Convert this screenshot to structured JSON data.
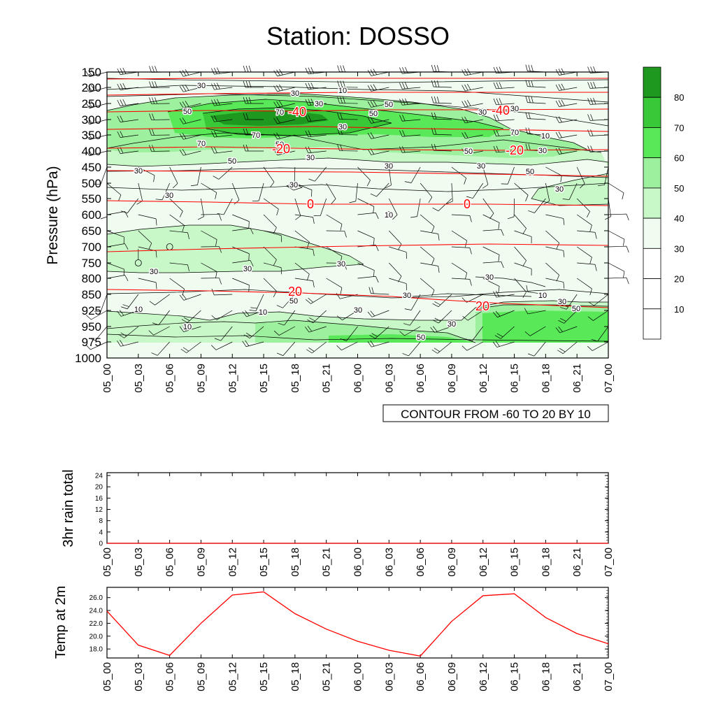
{
  "title": "Station: DOSSO",
  "colors": {
    "fill_levels": [
      "#ffffff",
      "#ffffff",
      "#ffffff",
      "#f0fcf0",
      "#c8f8c8",
      "#9df09d",
      "#58e858",
      "#38c838",
      "#1e981e"
    ],
    "temperature_contour": "#ff0000",
    "rh_contour": "#000000",
    "wind_barb": "#000000"
  },
  "time_labels": [
    "05_00",
    "05_03",
    "05_06",
    "05_09",
    "05_12",
    "05_15",
    "05_18",
    "05_21",
    "06_00",
    "06_03",
    "06_06",
    "06_09",
    "06_12",
    "06_15",
    "06_18",
    "06_21",
    "07_00"
  ],
  "chart_data": [
    {
      "type": "heatmap",
      "name": "time-pressure cross section",
      "title": "Station: DOSSO",
      "ylabel": "Pressure (hPa)",
      "xlabel": "",
      "y_ticks": [
        150,
        200,
        250,
        300,
        350,
        400,
        450,
        500,
        550,
        600,
        650,
        700,
        750,
        800,
        850,
        925,
        950,
        975,
        1000
      ],
      "y_tick_labels": [
        "150",
        "200",
        "250",
        "300",
        "350",
        "400",
        "450",
        "500",
        "550",
        "600",
        "650",
        "700",
        "750",
        "800",
        "850",
        "925",
        "950",
        "975",
        "1000"
      ],
      "ylim": [
        150,
        1000
      ],
      "x_categories": [
        "05_00",
        "05_03",
        "05_06",
        "05_09",
        "05_12",
        "05_15",
        "05_18",
        "05_21",
        "06_00",
        "06_03",
        "06_06",
        "06_09",
        "06_12",
        "06_15",
        "06_18",
        "06_21",
        "07_00"
      ],
      "filled_contour_levels": [
        10,
        20,
        30,
        40,
        50,
        60,
        70,
        80
      ],
      "colorbar_labels": [
        "80",
        "70",
        "60",
        "50",
        "40",
        "30",
        "20",
        "10"
      ],
      "temperature_isotherm_labels": [
        "-40",
        "-40",
        "-20",
        "-20",
        "0",
        "0",
        "20",
        "20"
      ],
      "contour_info": "CONTOUR FROM -60 TO 20 BY 10",
      "rh_contour_labels": [
        "30",
        "30",
        "10",
        "50",
        "30",
        "70",
        "50",
        "70",
        "30",
        "50",
        "70",
        "50",
        "50",
        "70",
        "30",
        "10",
        "50",
        "30",
        "30",
        "30",
        "30",
        "50",
        "30",
        "30",
        "30",
        "10",
        "0",
        "0",
        "30",
        "30",
        "30",
        "30",
        "30",
        "10",
        "10",
        "30",
        "50",
        "30",
        "10",
        "30",
        "10",
        "30",
        "50",
        "30",
        "50"
      ]
    },
    {
      "type": "line",
      "name": "3hr rain total",
      "ylabel": "3hr rain total",
      "x": [
        "05_00",
        "05_03",
        "05_06",
        "05_09",
        "05_12",
        "05_15",
        "05_18",
        "05_21",
        "06_00",
        "06_03",
        "06_06",
        "06_09",
        "06_12",
        "06_15",
        "06_18",
        "06_21",
        "07_00"
      ],
      "y_ticks": [
        0,
        4,
        8,
        12,
        16,
        20,
        24
      ],
      "y_tick_labels": [
        "0",
        "4",
        "8",
        "12",
        "16",
        "20",
        "24"
      ],
      "ylim": [
        0,
        25
      ],
      "series": [
        {
          "values": [
            0,
            0,
            0,
            0,
            0,
            0,
            0,
            0,
            0,
            0,
            0,
            0,
            0,
            0,
            0,
            0,
            0
          ],
          "color": "#ff0000"
        }
      ]
    },
    {
      "type": "line",
      "name": "Temp at 2m",
      "ylabel": "Temp at 2m",
      "x": [
        "05_00",
        "05_03",
        "05_06",
        "05_09",
        "05_12",
        "05_15",
        "05_18",
        "05_21",
        "06_00",
        "06_03",
        "06_06",
        "06_09",
        "06_12",
        "06_15",
        "06_18",
        "06_21",
        "07_00"
      ],
      "y_ticks": [
        18.0,
        20.0,
        22.0,
        24.0,
        26.0
      ],
      "y_tick_labels": [
        "18.0",
        "20.0",
        "22.0",
        "24.0",
        "26.0"
      ],
      "ylim": [
        16.6,
        27.6
      ],
      "series": [
        {
          "values": [
            23.9,
            18.6,
            17.0,
            22.0,
            26.4,
            26.9,
            23.5,
            21.1,
            19.2,
            17.8,
            16.9,
            22.3,
            26.3,
            26.6,
            22.9,
            20.4,
            18.8
          ],
          "color": "#ff0000"
        }
      ]
    }
  ]
}
